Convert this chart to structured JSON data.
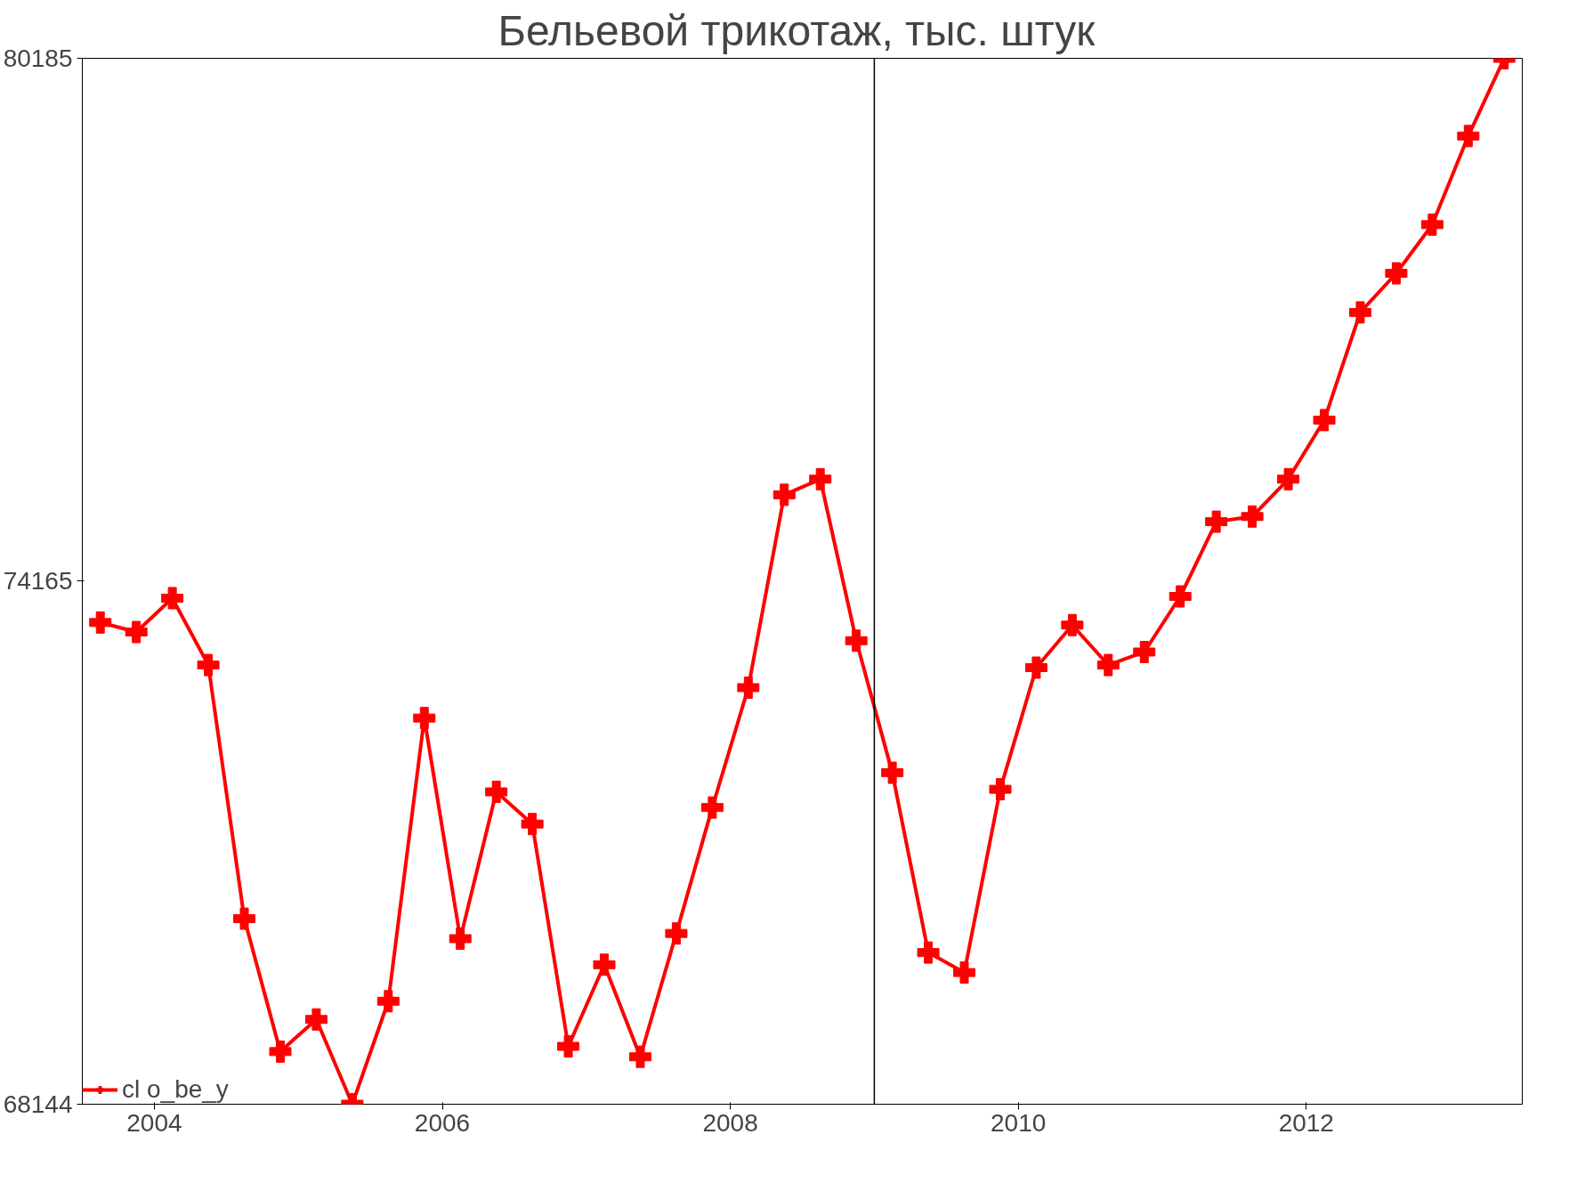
{
  "chart_data": {
    "type": "line",
    "title": "Бельевой трикотаж,  тыс. штук",
    "x": [
      2004.125,
      2004.375,
      2004.625,
      2004.875,
      2005.125,
      2005.375,
      2005.625,
      2005.875,
      2006.125,
      2006.375,
      2006.625,
      2006.875,
      2007.125,
      2007.375,
      2007.625,
      2007.875,
      2008.125,
      2008.375,
      2008.625,
      2008.875,
      2009.125,
      2009.375,
      2009.625,
      2009.875,
      2010.125,
      2010.375,
      2010.625,
      2010.875,
      2011.125,
      2011.375,
      2011.625,
      2011.875,
      2012.125,
      2012.375,
      2012.625,
      2012.875,
      2013.125,
      2013.375,
      2013.625,
      2013.875
    ],
    "series": [
      {
        "name": "cl o_be_y",
        "color": "#ff0000",
        "values": [
          73690,
          73580,
          73970,
          73200,
          70280,
          68750,
          69120,
          68144,
          69330,
          72590,
          70050,
          71740,
          71370,
          68810,
          69750,
          68690,
          70110,
          71560,
          72940,
          75160,
          75340,
          73480,
          71960,
          69890,
          69660,
          71770,
          73170,
          73660,
          73200,
          73350,
          73990,
          74850,
          74910,
          75340,
          76020,
          77260,
          77710,
          78270,
          79290,
          80185
        ]
      }
    ],
    "xlim": [
      2004,
      2014.0
    ],
    "xticks": [
      {
        "value": 2004.5,
        "label": "2004"
      },
      {
        "value": 2006.5,
        "label": "2006"
      },
      {
        "value": 2008.5,
        "label": "2008"
      },
      {
        "value": 2010.5,
        "label": "2010"
      },
      {
        "value": 2012.5,
        "label": "2012"
      }
    ],
    "ylim": [
      68144,
      80185
    ],
    "yticks": [
      68144,
      74165,
      80185
    ],
    "ref_lines": [
      {
        "axis": "x",
        "value": 2009.5,
        "color": "#000000"
      }
    ],
    "marker": "cross",
    "line_style": "solid",
    "legend": "bottom left",
    "grid": false
  }
}
